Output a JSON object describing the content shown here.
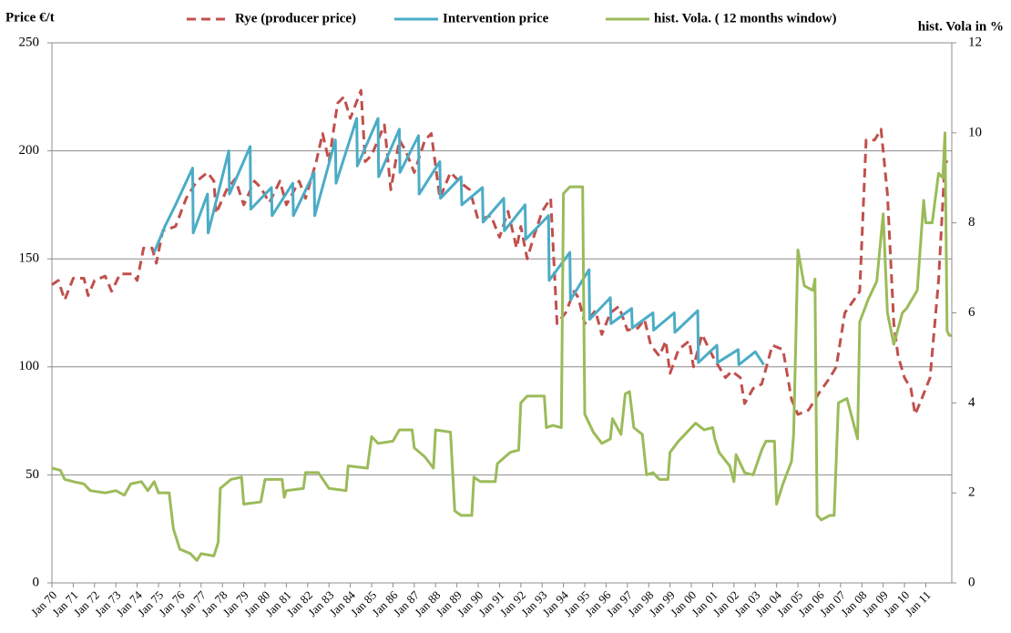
{
  "chart_data": {
    "type": "line",
    "ylabel": "Price €/t",
    "y2label": "hist. Vola in %",
    "xlim": [
      1970,
      2012.22
    ],
    "ylim": [
      0,
      250
    ],
    "y2lim": [
      0,
      12
    ],
    "yticks": [
      0,
      50,
      100,
      150,
      200,
      250
    ],
    "y2ticks": [
      0,
      2,
      4,
      6,
      8,
      10,
      12
    ],
    "grid": true,
    "xticks": [
      {
        "value": 1970,
        "label": "Jan 70"
      },
      {
        "value": 1971,
        "label": "Jan 71"
      },
      {
        "value": 1972,
        "label": "Jan 72"
      },
      {
        "value": 1973,
        "label": "Jan 73"
      },
      {
        "value": 1974,
        "label": "Jan 74"
      },
      {
        "value": 1975,
        "label": "Jan 75"
      },
      {
        "value": 1976,
        "label": "Jan 76"
      },
      {
        "value": 1977,
        "label": "Jan 77"
      },
      {
        "value": 1978,
        "label": "Jan 78"
      },
      {
        "value": 1979,
        "label": "Jan 79"
      },
      {
        "value": 1980,
        "label": "Jan 80"
      },
      {
        "value": 1981,
        "label": "Jan 81"
      },
      {
        "value": 1982,
        "label": "Jan 82"
      },
      {
        "value": 1983,
        "label": "Jan 83"
      },
      {
        "value": 1984,
        "label": "Jan 84"
      },
      {
        "value": 1985,
        "label": "Jan 85"
      },
      {
        "value": 1986,
        "label": "Jan 86"
      },
      {
        "value": 1987,
        "label": "Jan 87"
      },
      {
        "value": 1988,
        "label": "Jan 88"
      },
      {
        "value": 1989,
        "label": "Jan 89"
      },
      {
        "value": 1990,
        "label": "Jan 90"
      },
      {
        "value": 1991,
        "label": "Jan 91"
      },
      {
        "value": 1992,
        "label": "Jan 92"
      },
      {
        "value": 1993,
        "label": "Jan 93"
      },
      {
        "value": 1994,
        "label": "Jan 94"
      },
      {
        "value": 1995,
        "label": "Jan 95"
      },
      {
        "value": 1996,
        "label": "Jan 96"
      },
      {
        "value": 1997,
        "label": "Jan 97"
      },
      {
        "value": 1998,
        "label": "Jan 98"
      },
      {
        "value": 1999,
        "label": "Jan 99"
      },
      {
        "value": 2000,
        "label": "Jan 00"
      },
      {
        "value": 2001,
        "label": "Jan 01"
      },
      {
        "value": 2002,
        "label": "Jan 02"
      },
      {
        "value": 2003,
        "label": "Jan 03"
      },
      {
        "value": 2004,
        "label": "Jan 04"
      },
      {
        "value": 2005,
        "label": "Jan 05"
      },
      {
        "value": 2006,
        "label": "Jan 06"
      },
      {
        "value": 2007,
        "label": "Jan 07"
      },
      {
        "value": 2008,
        "label": "Jan 08"
      },
      {
        "value": 2009,
        "label": "Jan 09"
      },
      {
        "value": 2010,
        "label": "Jan 10"
      },
      {
        "value": 2011,
        "label": "Jan 11"
      }
    ],
    "series": [
      {
        "name": "Rye (producer price)",
        "color": "#c0504d",
        "dashed": true,
        "x": [
          1970.0,
          1970.3,
          1970.6,
          1971.0,
          1971.5,
          1971.7,
          1972.0,
          1972.5,
          1972.8,
          1973.2,
          1973.8,
          1974.0,
          1974.3,
          1974.7,
          1974.9,
          1975.2,
          1975.8,
          1976.3,
          1976.8,
          1977.3,
          1977.6,
          1977.7,
          1978.2,
          1978.6,
          1979.0,
          1979.5,
          1979.8,
          1980.2,
          1980.7,
          1981.0,
          1981.6,
          1981.9,
          1982.4,
          1982.7,
          1983.0,
          1983.4,
          1983.7,
          1984.0,
          1984.5,
          1984.7,
          1985.0,
          1985.6,
          1985.9,
          1986.3,
          1986.6,
          1987.0,
          1987.5,
          1987.8,
          1988.2,
          1988.7,
          1989.2,
          1989.6,
          1990.0,
          1990.6,
          1991.0,
          1991.4,
          1991.8,
          1992.0,
          1992.3,
          1992.6,
          1993.0,
          1993.4,
          1993.7,
          1994.1,
          1994.5,
          1994.7,
          1995.0,
          1995.5,
          1995.8,
          1996.2,
          1996.6,
          1997.0,
          1997.5,
          1997.8,
          1998.1,
          1998.5,
          1998.8,
          1999.0,
          1999.4,
          1999.9,
          2000.1,
          2000.5,
          2001.0,
          2001.6,
          2001.9,
          2002.3,
          2002.5,
          2002.9,
          2003.3,
          2003.8,
          2004.3,
          2004.7,
          2005.0,
          2005.5,
          2006.0,
          2006.5,
          2006.8,
          2007.2,
          2007.7,
          2007.9,
          2008.2,
          2008.6,
          2008.9,
          2009.2,
          2009.5,
          2009.7,
          2010.0,
          2010.3,
          2010.5,
          2010.8,
          2011.2,
          2011.6,
          2011.9,
          2012.2
        ],
        "values": [
          138,
          140,
          131,
          141,
          141,
          133,
          140,
          142,
          135,
          143,
          143,
          140,
          155,
          155,
          148,
          163,
          165,
          178,
          186,
          190,
          186,
          171,
          182,
          187,
          175,
          186,
          183,
          176,
          186,
          175,
          186,
          178,
          195,
          208,
          195,
          222,
          225,
          215,
          228,
          195,
          198,
          212,
          182,
          205,
          200,
          190,
          205,
          208,
          178,
          190,
          185,
          182,
          168,
          170,
          160,
          172,
          155,
          165,
          150,
          160,
          172,
          178,
          120,
          125,
          135,
          132,
          120,
          126,
          115,
          125,
          128,
          117,
          118,
          122,
          110,
          105,
          112,
          97,
          108,
          112,
          100,
          115,
          105,
          95,
          98,
          95,
          83,
          90,
          92,
          110,
          108,
          85,
          78,
          80,
          88,
          95,
          100,
          125,
          132,
          135,
          205,
          205,
          210,
          180,
          120,
          105,
          95,
          90,
          78,
          85,
          95,
          140,
          195,
          195
        ]
      },
      {
        "name": "Intervention price",
        "color": "#4bacc6",
        "dashed": false,
        "x": [
          1974.8,
          1975.3,
          1975.8,
          1976.6,
          1976.63,
          1977.3,
          1977.33,
          1978.3,
          1978.33,
          1979.3,
          1979.33,
          1980.3,
          1980.33,
          1981.3,
          1981.33,
          1982.3,
          1982.33,
          1983.3,
          1983.33,
          1984.3,
          1984.33,
          1985.3,
          1985.33,
          1986.3,
          1986.33,
          1987.2,
          1987.23,
          1988.2,
          1988.23,
          1989.2,
          1989.23,
          1990.2,
          1990.23,
          1991.2,
          1991.23,
          1992.2,
          1992.23,
          1993.3,
          1993.33,
          1994.3,
          1994.33,
          1995.2,
          1995.23,
          1996.2,
          1996.23,
          1997.2,
          1997.23,
          1998.2,
          1998.23,
          1999.2,
          1999.23,
          2000.3,
          2000.33,
          2001.2,
          2001.23,
          2002.2,
          2002.23,
          2003.0,
          2003.4
        ],
        "values": [
          153,
          165,
          175,
          192,
          162,
          180,
          162,
          200,
          180,
          202,
          173,
          183,
          170,
          185,
          170,
          190,
          170,
          205,
          185,
          215,
          193,
          215,
          188,
          210,
          190,
          207,
          180,
          195,
          178,
          188,
          175,
          183,
          167,
          178,
          163,
          175,
          159,
          170,
          140,
          153,
          131,
          145,
          122,
          132,
          120,
          127,
          118,
          125,
          117,
          125,
          116,
          126,
          102,
          110,
          102,
          108,
          101,
          107,
          101
        ]
      },
      {
        "name": "hist. Vola. ( 12 months window)",
        "color": "#9bbb59",
        "dashed": false,
        "axis": "y2",
        "x": [
          1970.0,
          1970.4,
          1970.6,
          1971.0,
          1971.5,
          1971.8,
          1972.5,
          1973.0,
          1973.4,
          1973.7,
          1974.2,
          1974.5,
          1974.8,
          1975.0,
          1975.5,
          1975.7,
          1976.0,
          1976.5,
          1976.8,
          1977.0,
          1977.6,
          1977.8,
          1977.9,
          1978.4,
          1978.9,
          1979.0,
          1979.8,
          1980.0,
          1980.8,
          1980.9,
          1981.0,
          1981.8,
          1981.9,
          1982.5,
          1983.0,
          1983.8,
          1983.9,
          1984.8,
          1985.0,
          1985.3,
          1986.0,
          1986.3,
          1986.9,
          1987.0,
          1987.5,
          1987.9,
          1988.0,
          1988.7,
          1988.9,
          1989.2,
          1989.7,
          1989.8,
          1990.1,
          1990.8,
          1990.9,
          1991.5,
          1991.9,
          1992.0,
          1992.3,
          1993.1,
          1993.2,
          1993.5,
          1993.9,
          1994.0,
          1994.3,
          1994.9,
          1995.0,
          1995.4,
          1995.8,
          1996.2,
          1996.3,
          1996.7,
          1996.9,
          1997.1,
          1997.3,
          1997.7,
          1997.9,
          1998.2,
          1998.5,
          1998.9,
          1999.0,
          1999.4,
          1999.8,
          2000.2,
          2000.6,
          2001.0,
          2001.1,
          2001.3,
          2001.8,
          2002.0,
          2002.1,
          2002.5,
          2002.9,
          2003.3,
          2003.5,
          2003.9,
          2004.0,
          2004.3,
          2004.7,
          2004.8,
          2005.0,
          2005.3,
          2005.7,
          2005.8,
          2005.9,
          2006.1,
          2006.5,
          2006.7,
          2006.9,
          2007.3,
          2007.8,
          2007.9,
          2008.3,
          2008.7,
          2009.0,
          2009.2,
          2009.5,
          2009.9,
          2010.1,
          2010.6,
          2010.9,
          2011.0,
          2011.3,
          2011.6,
          2011.8,
          2011.9,
          2012.0,
          2012.1,
          2012.2
        ],
        "values": [
          2.55,
          2.5,
          2.3,
          2.25,
          2.2,
          2.05,
          2.0,
          2.05,
          1.95,
          2.2,
          2.25,
          2.05,
          2.25,
          2.0,
          2.0,
          1.2,
          0.75,
          0.65,
          0.5,
          0.65,
          0.6,
          0.9,
          2.1,
          2.3,
          2.35,
          1.75,
          1.8,
          2.3,
          2.3,
          1.9,
          2.05,
          2.1,
          2.45,
          2.45,
          2.1,
          2.05,
          2.6,
          2.55,
          3.25,
          3.1,
          3.15,
          3.4,
          3.4,
          3.0,
          2.8,
          2.55,
          3.4,
          3.35,
          1.6,
          1.5,
          1.5,
          2.35,
          2.25,
          2.25,
          2.65,
          2.9,
          2.95,
          4.0,
          4.15,
          4.15,
          3.45,
          3.5,
          3.45,
          8.65,
          8.8,
          8.8,
          3.75,
          3.35,
          3.1,
          3.2,
          3.65,
          3.3,
          4.2,
          4.25,
          3.45,
          3.3,
          2.4,
          2.45,
          2.3,
          2.3,
          2.9,
          3.15,
          3.35,
          3.55,
          3.4,
          3.45,
          3.2,
          2.9,
          2.6,
          2.25,
          2.85,
          2.45,
          2.4,
          2.95,
          3.15,
          3.15,
          1.75,
          2.2,
          2.7,
          3.3,
          7.4,
          6.6,
          6.5,
          6.75,
          1.5,
          1.4,
          1.5,
          1.5,
          4.0,
          4.1,
          3.2,
          5.8,
          6.3,
          6.7,
          8.2,
          6.0,
          5.3,
          6.0,
          6.1,
          6.5,
          8.5,
          8.0,
          8.0,
          9.1,
          9.0,
          10.0,
          5.6,
          5.5,
          5.5
        ]
      }
    ]
  }
}
